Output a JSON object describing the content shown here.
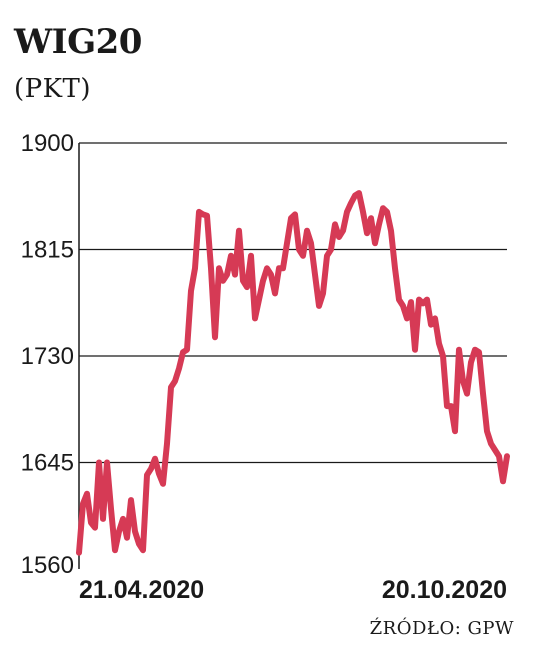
{
  "header": {
    "title": "WIG20",
    "subtitle": "(PKT)"
  },
  "source": "ŹRÓDŁO: GPW",
  "chart_data": {
    "type": "line",
    "title": "WIG20",
    "ylabel": "(PKT)",
    "xlabel": "",
    "ylim": [
      1560,
      1900
    ],
    "yticks": [
      1560,
      1645,
      1730,
      1815,
      1900
    ],
    "x_tick_labels": [
      "21.04.2020",
      "20.10.2020"
    ],
    "grid": true,
    "line_color": "#d63a55",
    "series": [
      {
        "x_range": [
          "21.04.2020",
          "20.10.2020"
        ],
        "values": [
          1573,
          1612,
          1620,
          1597,
          1593,
          1645,
          1600,
          1645,
          1608,
          1575,
          1590,
          1600,
          1585,
          1615,
          1590,
          1580,
          1575,
          1635,
          1640,
          1648,
          1636,
          1628,
          1660,
          1705,
          1710,
          1720,
          1733,
          1735,
          1782,
          1800,
          1845,
          1843,
          1842,
          1800,
          1745,
          1800,
          1790,
          1795,
          1810,
          1795,
          1830,
          1790,
          1785,
          1810,
          1760,
          1775,
          1790,
          1800,
          1795,
          1780,
          1800,
          1800,
          1820,
          1840,
          1843,
          1815,
          1810,
          1830,
          1820,
          1795,
          1770,
          1780,
          1810,
          1815,
          1835,
          1825,
          1830,
          1845,
          1852,
          1858,
          1860,
          1845,
          1828,
          1840,
          1820,
          1835,
          1848,
          1845,
          1830,
          1800,
          1775,
          1770,
          1760,
          1773,
          1735,
          1775,
          1772,
          1775,
          1755,
          1760,
          1740,
          1730,
          1690,
          1690,
          1670,
          1735,
          1710,
          1700,
          1725,
          1735,
          1733,
          1700,
          1670,
          1660,
          1655,
          1650,
          1630,
          1650
        ]
      }
    ]
  }
}
